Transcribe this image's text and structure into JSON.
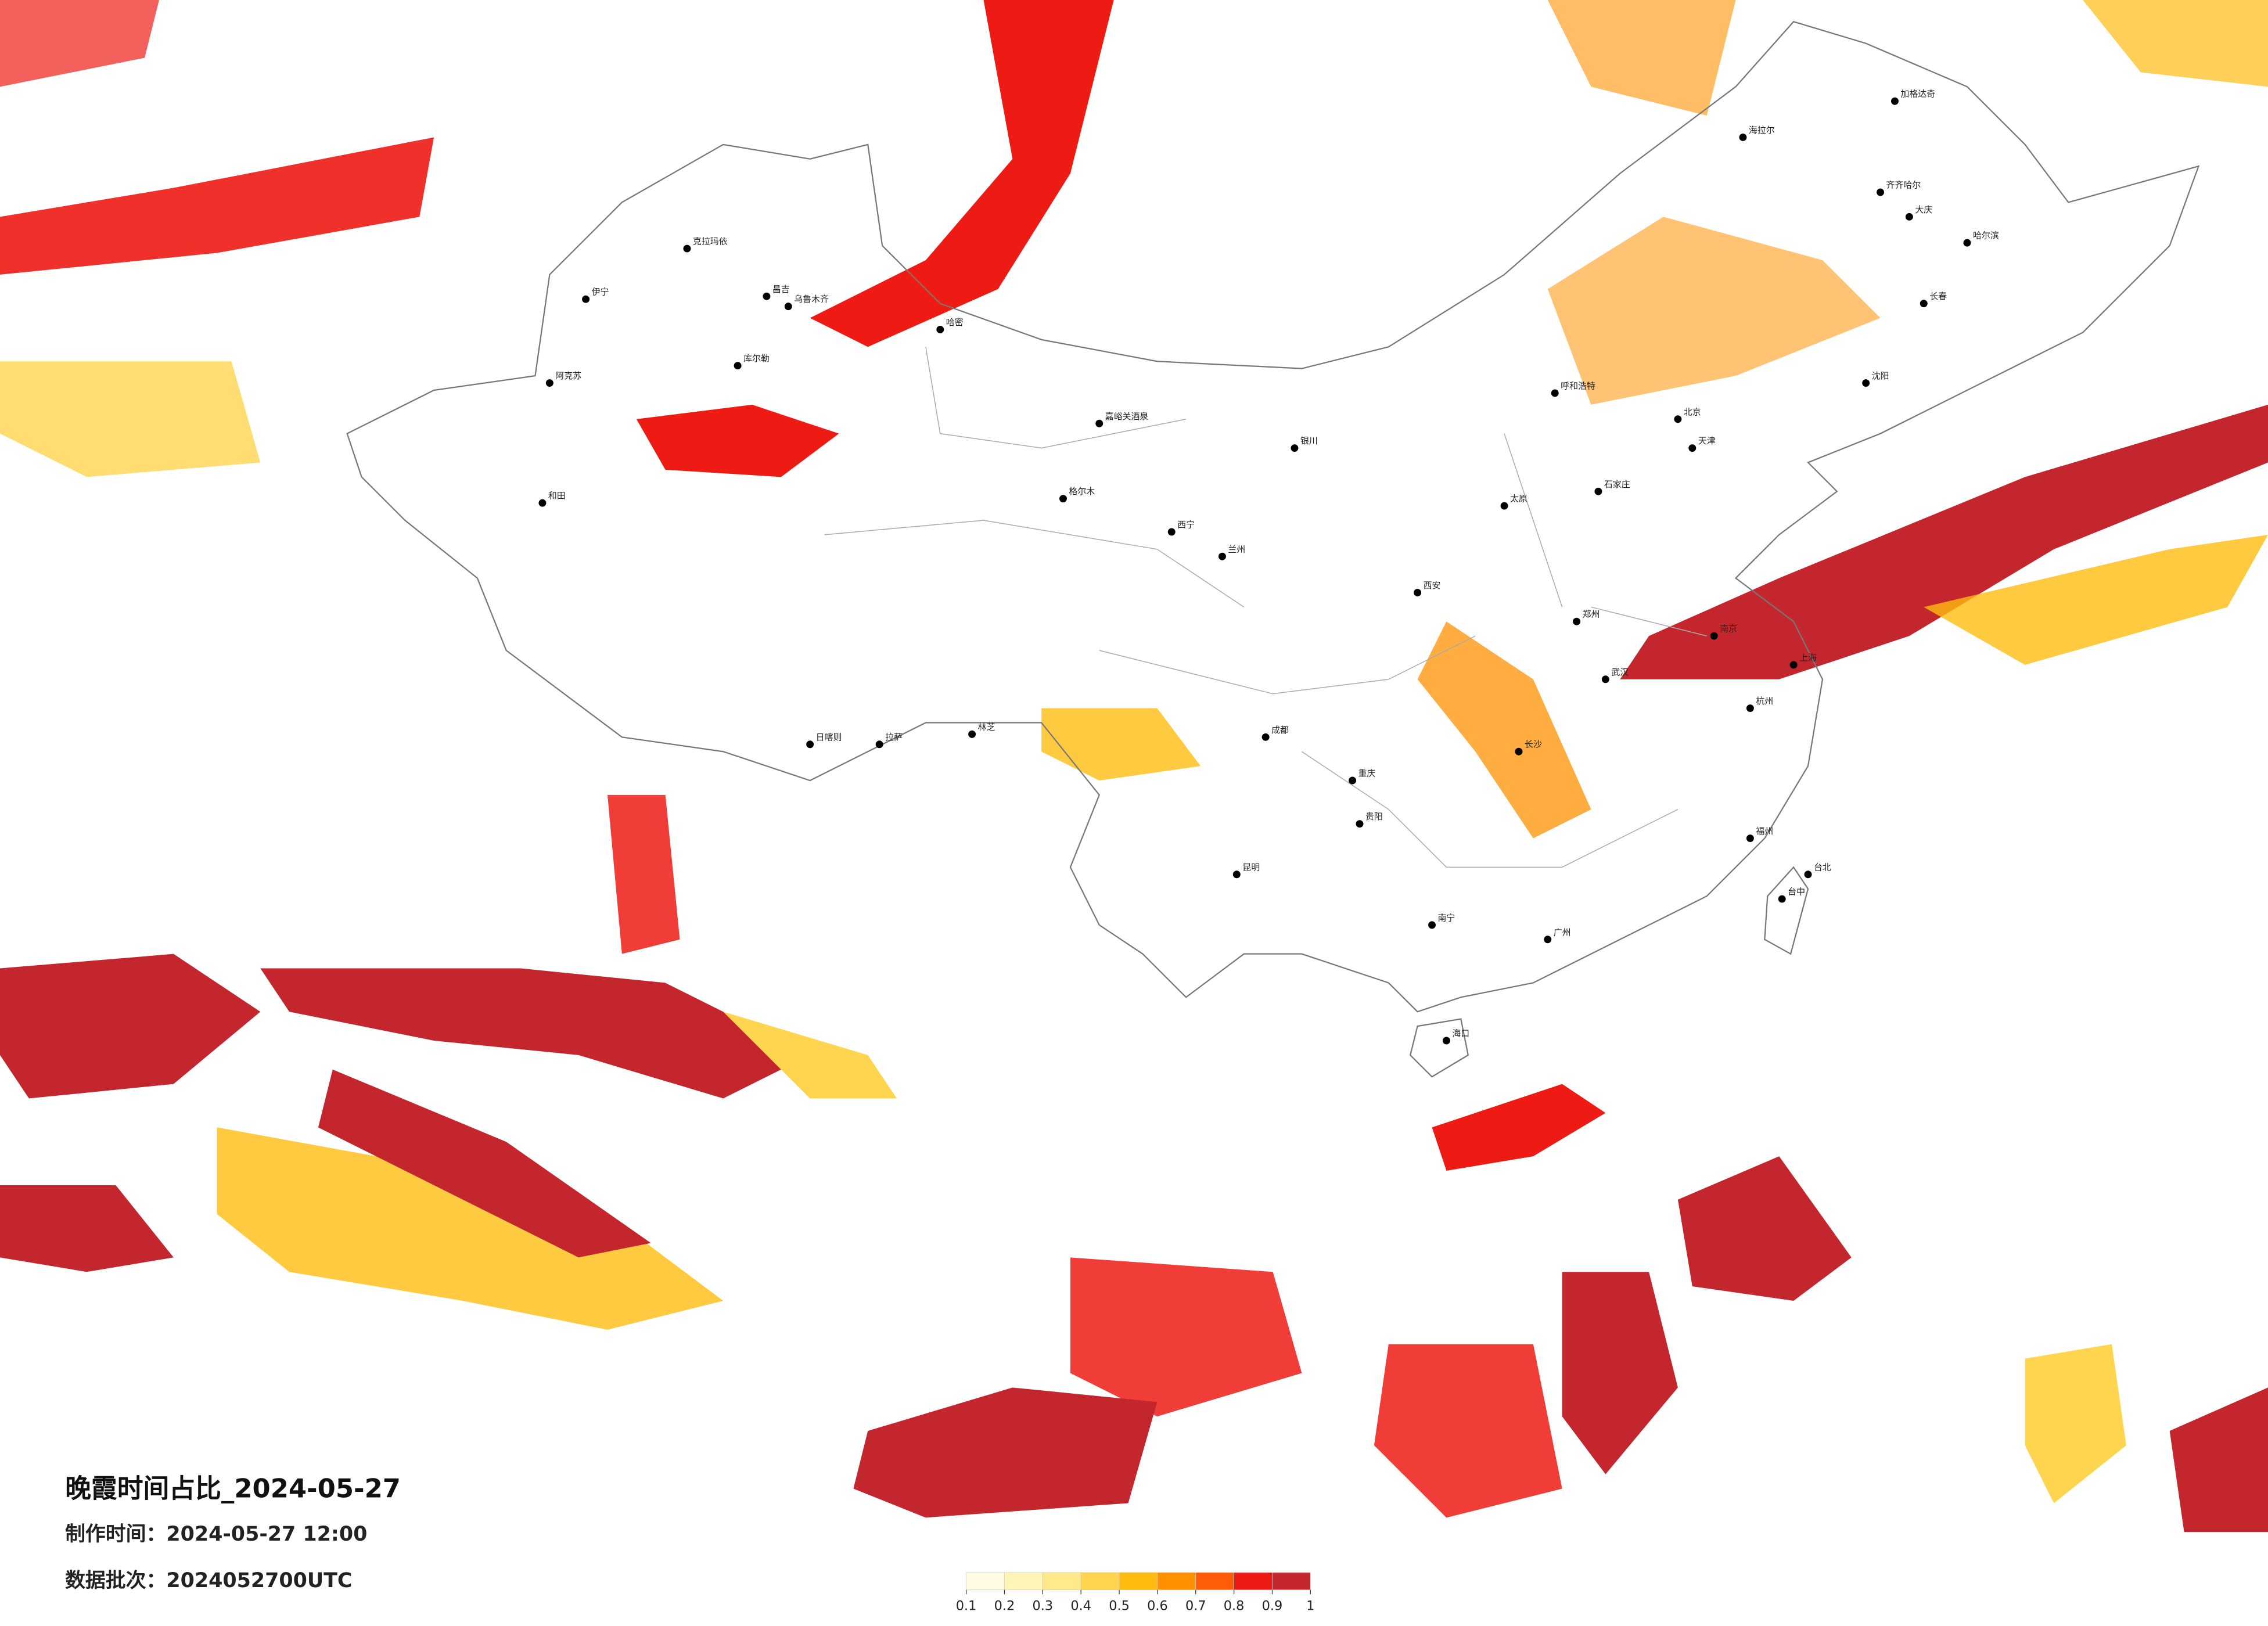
{
  "title": "晚霞时间占比_2024-05-27",
  "production_time": "制作时间：2024-05-27 12:00",
  "batch": "数据批次：2024052700UTC",
  "colorbar": {
    "ticks": [
      0.1,
      0.2,
      0.3,
      0.4,
      0.5,
      0.6,
      0.7,
      0.8,
      0.9,
      1
    ],
    "colors": [
      "#fffbe4",
      "#fff5b8",
      "#ffe98a",
      "#ffd54f",
      "#ffbb10",
      "#ff9100",
      "#ff5c0a",
      "#ee1b14",
      "#c4262e"
    ]
  },
  "cities": [
    "伊宁",
    "克拉玛依",
    "昌吉",
    "乌鲁木齐",
    "阿克苏",
    "和田",
    "库尔勒",
    "哈密",
    "嘉峪关酒泉",
    "格尔木",
    "日喀则",
    "拉萨",
    "林芝",
    "西宁",
    "兰州",
    "银川",
    "呼和浩特",
    "北京",
    "天津",
    "石家庄",
    "太原",
    "郑州",
    "西安",
    "成都",
    "重庆",
    "昆明",
    "贵阳",
    "南宁",
    "广州",
    "长沙",
    "武汉",
    "南京",
    "上海",
    "杭州",
    "福州",
    "台北",
    "台中",
    "海口",
    "哈尔滨",
    "长春",
    "沈阳",
    "齐齐哈尔",
    "大庆",
    "海拉尔",
    "加格达奇"
  ]
}
